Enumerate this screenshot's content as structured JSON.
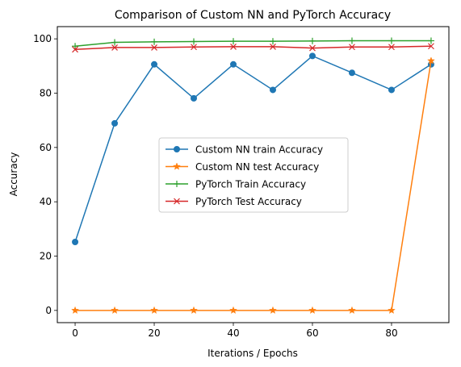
{
  "chart_data": {
    "type": "line",
    "title": "Comparison of Custom NN and PyTorch Accuracy",
    "xlabel": "Iterations / Epochs",
    "ylabel": "Accuracy",
    "xlim": [
      -4.5,
      94.5
    ],
    "ylim": [
      -4.5,
      104.5
    ],
    "x_ticks": [
      0,
      20,
      40,
      60,
      80
    ],
    "y_ticks": [
      0,
      20,
      40,
      60,
      80,
      100
    ],
    "grid": false,
    "legend_position": "center",
    "x": [
      0,
      10,
      20,
      30,
      40,
      50,
      60,
      70,
      80,
      90
    ],
    "series": [
      {
        "name": "Custom NN train Accuracy",
        "color": "#1f77b4",
        "marker": "circle",
        "values": [
          25.2,
          68.9,
          90.6,
          78.1,
          90.6,
          81.2,
          93.7,
          87.5,
          81.2,
          90.6
        ]
      },
      {
        "name": "Custom NN test Accuracy",
        "color": "#ff7f0e",
        "marker": "star",
        "values": [
          0,
          0,
          0,
          0,
          0,
          0,
          0,
          0,
          0,
          91.9
        ]
      },
      {
        "name": "PyTorch Train Accuracy",
        "color": "#2ca02c",
        "marker": "plus",
        "values": [
          97.3,
          98.7,
          98.9,
          99.0,
          99.1,
          99.1,
          99.2,
          99.3,
          99.3,
          99.3
        ]
      },
      {
        "name": "PyTorch Test Accuracy",
        "color": "#d62728",
        "marker": "x",
        "values": [
          96.1,
          96.8,
          96.8,
          97.0,
          97.1,
          97.1,
          96.6,
          97.0,
          97.0,
          97.3
        ]
      }
    ]
  }
}
